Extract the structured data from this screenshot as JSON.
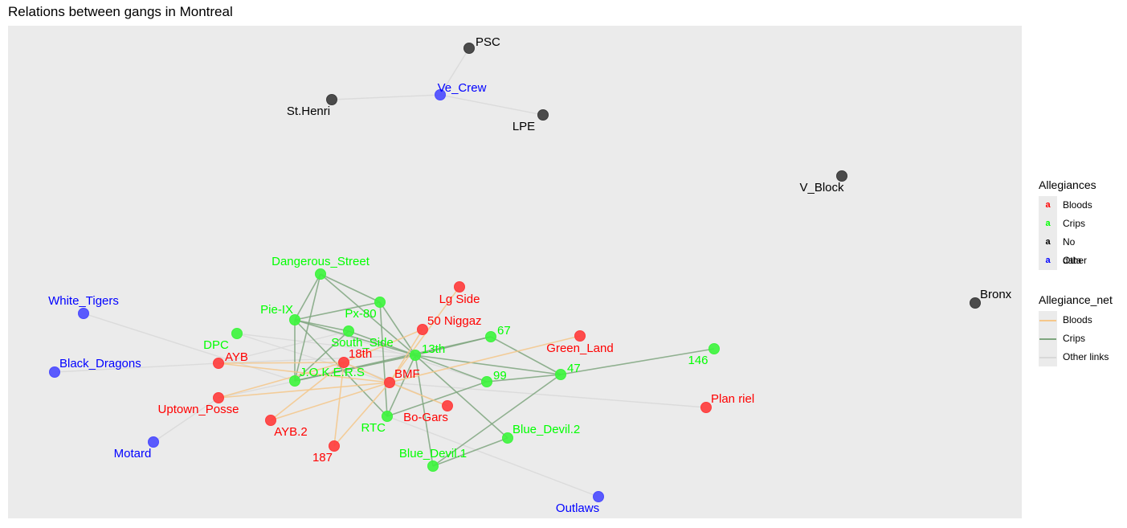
{
  "title": "Relations between gangs in Montreal",
  "colors": {
    "panel_bg": "#ebebeb",
    "bloods": "#ff0000",
    "crips": "#00ff00",
    "no_data": "#000000",
    "other": "#0000ff",
    "edge_bloods": "#f5c78a",
    "edge_crips": "#7fa67f",
    "edge_other": "#d9d9d9"
  },
  "legend": {
    "allegiances": {
      "title": "Allegiances",
      "items": [
        {
          "label": "Bloods",
          "group": "bloods"
        },
        {
          "label": "Crips",
          "group": "crips"
        },
        {
          "label": "No data",
          "group": "no_data"
        },
        {
          "label": "Other",
          "group": "other"
        }
      ]
    },
    "allegiance_net": {
      "title": "Allegiance_net",
      "items": [
        {
          "label": "Bloods",
          "type": "bloods"
        },
        {
          "label": "Crips",
          "type": "crips"
        },
        {
          "label": "Other links",
          "type": "other"
        }
      ]
    }
  },
  "nodes": [
    {
      "id": "PSC",
      "group": "no_data"
    },
    {
      "id": "Ve_Crew",
      "group": "other"
    },
    {
      "id": "St.Henri",
      "group": "no_data"
    },
    {
      "id": "LPE",
      "group": "no_data"
    },
    {
      "id": "V_Block",
      "group": "no_data"
    },
    {
      "id": "Bronx",
      "group": "no_data"
    },
    {
      "id": "Dangerous_Street",
      "group": "crips"
    },
    {
      "id": "Lg Side",
      "group": "bloods"
    },
    {
      "id": "Px-80",
      "group": "crips"
    },
    {
      "id": "Pie-IX",
      "group": "crips"
    },
    {
      "id": "50 Niggaz",
      "group": "bloods"
    },
    {
      "id": "White_Tigers",
      "group": "other"
    },
    {
      "id": "DPC",
      "group": "crips"
    },
    {
      "id": "South_Side",
      "group": "crips"
    },
    {
      "id": "67",
      "group": "crips"
    },
    {
      "id": "Green_Land",
      "group": "bloods"
    },
    {
      "id": "18th",
      "group": "bloods"
    },
    {
      "id": "13th",
      "group": "crips"
    },
    {
      "id": "146",
      "group": "crips"
    },
    {
      "id": "Black_Dragons",
      "group": "other"
    },
    {
      "id": "AYB",
      "group": "bloods"
    },
    {
      "id": "J.O.K.E.R.S",
      "group": "crips"
    },
    {
      "id": "BMF",
      "group": "bloods"
    },
    {
      "id": "99",
      "group": "crips"
    },
    {
      "id": "47",
      "group": "crips"
    },
    {
      "id": "Uptown_Posse",
      "group": "bloods"
    },
    {
      "id": "Plan riel",
      "group": "bloods"
    },
    {
      "id": "Bo-Gars",
      "group": "bloods"
    },
    {
      "id": "AYB.2",
      "group": "bloods"
    },
    {
      "id": "RTC",
      "group": "crips"
    },
    {
      "id": "Blue_Devil.2",
      "group": "crips"
    },
    {
      "id": "187",
      "group": "bloods"
    },
    {
      "id": "Motard",
      "group": "other"
    },
    {
      "id": "Blue_Devil.1",
      "group": "crips"
    },
    {
      "id": "Outlaws",
      "group": "other"
    }
  ],
  "edges": [
    {
      "source": "PSC",
      "target": "Ve_Crew",
      "type": "other"
    },
    {
      "source": "St.Henri",
      "target": "Ve_Crew",
      "type": "other"
    },
    {
      "source": "Ve_Crew",
      "target": "LPE",
      "type": "other"
    },
    {
      "source": "White_Tigers",
      "target": "J.O.K.E.R.S",
      "type": "other"
    },
    {
      "source": "Black_Dragons",
      "target": "AYB",
      "type": "other"
    },
    {
      "source": "Motard",
      "target": "Uptown_Posse",
      "type": "other"
    },
    {
      "source": "Outlaws",
      "target": "RTC",
      "type": "other"
    },
    {
      "source": "BMF",
      "target": "Plan riel",
      "type": "other"
    },
    {
      "source": "DPC",
      "target": "13th",
      "type": "other"
    },
    {
      "source": "DPC",
      "target": "BMF",
      "type": "other"
    },
    {
      "source": "AYB",
      "target": "South_Side",
      "type": "other"
    },
    {
      "source": "AYB",
      "target": "13th",
      "type": "other"
    },
    {
      "source": "Pie-IX",
      "target": "99",
      "type": "other"
    },
    {
      "source": "18th",
      "target": "Bo-Gars",
      "type": "other"
    },
    {
      "source": "Uptown_Posse",
      "target": "13th",
      "type": "other"
    },
    {
      "source": "Dangerous_Street",
      "target": "Pie-IX",
      "type": "crips"
    },
    {
      "source": "Dangerous_Street",
      "target": "J.O.K.E.R.S",
      "type": "crips"
    },
    {
      "source": "Dangerous_Street",
      "target": "Px-80",
      "type": "crips"
    },
    {
      "source": "Dangerous_Street",
      "target": "13th",
      "type": "crips"
    },
    {
      "source": "Pie-IX",
      "target": "Px-80",
      "type": "crips"
    },
    {
      "source": "Pie-IX",
      "target": "J.O.K.E.R.S",
      "type": "crips"
    },
    {
      "source": "Pie-IX",
      "target": "13th",
      "type": "crips"
    },
    {
      "source": "Pie-IX",
      "target": "South_Side",
      "type": "crips"
    },
    {
      "source": "Pie-IX",
      "target": "RTC",
      "type": "crips"
    },
    {
      "source": "Px-80",
      "target": "13th",
      "type": "crips"
    },
    {
      "source": "Px-80",
      "target": "RTC",
      "type": "crips"
    },
    {
      "source": "South_Side",
      "target": "13th",
      "type": "crips"
    },
    {
      "source": "South_Side",
      "target": "J.O.K.E.R.S",
      "type": "crips"
    },
    {
      "source": "13th",
      "target": "67",
      "type": "crips"
    },
    {
      "source": "13th",
      "target": "47",
      "type": "crips"
    },
    {
      "source": "13th",
      "target": "99",
      "type": "crips"
    },
    {
      "source": "13th",
      "target": "RTC",
      "type": "crips"
    },
    {
      "source": "13th",
      "target": "Blue_Devil.2",
      "type": "crips"
    },
    {
      "source": "13th",
      "target": "Blue_Devil.1",
      "type": "crips"
    },
    {
      "source": "13th",
      "target": "J.O.K.E.R.S",
      "type": "crips"
    },
    {
      "source": "J.O.K.E.R.S",
      "target": "67",
      "type": "crips"
    },
    {
      "source": "99",
      "target": "47",
      "type": "crips"
    },
    {
      "source": "47",
      "target": "146",
      "type": "crips"
    },
    {
      "source": "67",
      "target": "47",
      "type": "crips"
    },
    {
      "source": "Blue_Devil.2",
      "target": "Blue_Devil.1",
      "type": "crips"
    },
    {
      "source": "47",
      "target": "Blue_Devil.1",
      "type": "crips"
    },
    {
      "source": "RTC",
      "target": "99",
      "type": "crips"
    },
    {
      "source": "AYB",
      "target": "18th",
      "type": "bloods"
    },
    {
      "source": "AYB",
      "target": "BMF",
      "type": "bloods"
    },
    {
      "source": "Uptown_Posse",
      "target": "18th",
      "type": "bloods"
    },
    {
      "source": "Uptown_Posse",
      "target": "BMF",
      "type": "bloods"
    },
    {
      "source": "AYB.2",
      "target": "BMF",
      "type": "bloods"
    },
    {
      "source": "AYB.2",
      "target": "18th",
      "type": "bloods"
    },
    {
      "source": "187",
      "target": "BMF",
      "type": "bloods"
    },
    {
      "source": "187",
      "target": "18th",
      "type": "bloods"
    },
    {
      "source": "BMF",
      "target": "50 Niggaz",
      "type": "bloods"
    },
    {
      "source": "BMF",
      "target": "Lg Side",
      "type": "bloods"
    },
    {
      "source": "BMF",
      "target": "Green_Land",
      "type": "bloods"
    },
    {
      "source": "BMF",
      "target": "Bo-Gars",
      "type": "bloods"
    },
    {
      "source": "18th",
      "target": "50 Niggaz",
      "type": "bloods"
    },
    {
      "source": "18th",
      "target": "BMF",
      "type": "bloods"
    }
  ]
}
